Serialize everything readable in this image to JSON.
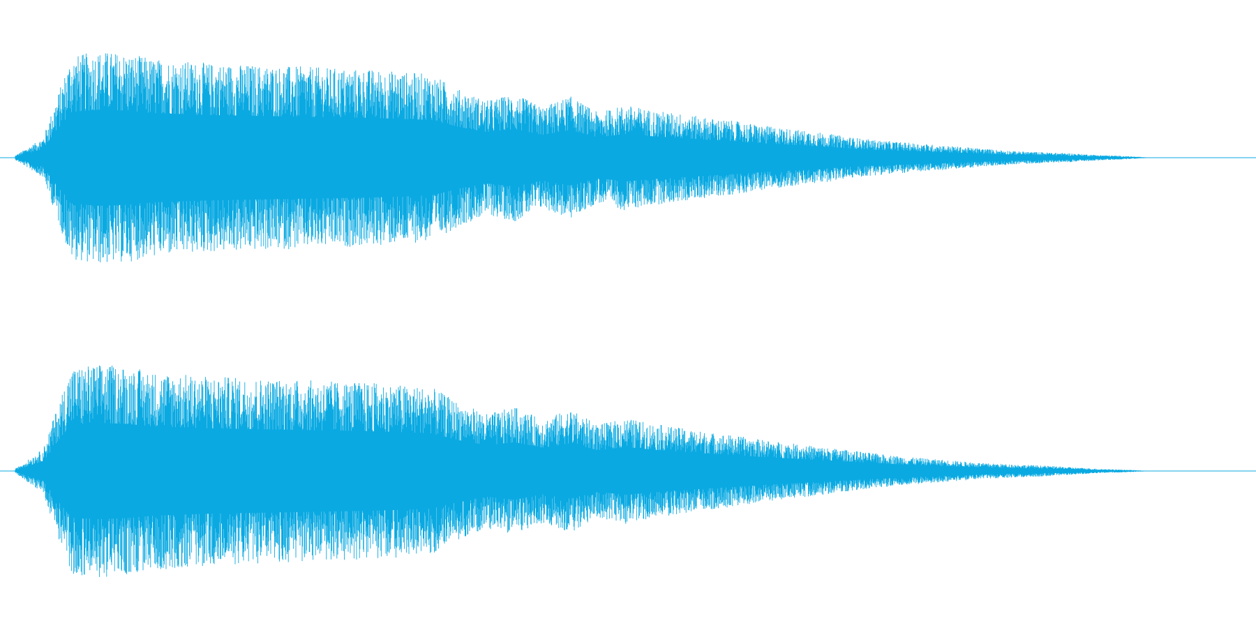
{
  "waveform": {
    "color": "#0aa9e2",
    "background": "#ffffff",
    "channels": [
      {
        "name": "channel-1",
        "envelope": [
          0.02,
          0.18,
          0.92,
          0.97,
          0.95,
          0.9,
          0.88,
          0.86,
          0.85,
          0.84,
          0.83,
          0.82,
          0.81,
          0.8,
          0.78,
          0.76,
          0.62,
          0.52,
          0.58,
          0.46,
          0.56,
          0.41,
          0.48,
          0.43,
          0.4,
          0.36,
          0.33,
          0.29,
          0.26,
          0.23,
          0.19,
          0.16,
          0.14,
          0.12,
          0.1,
          0.08,
          0.06,
          0.05,
          0.04,
          0.025,
          0.015,
          0.0
        ]
      },
      {
        "name": "channel-2",
        "envelope": [
          0.02,
          0.2,
          0.94,
          0.97,
          0.95,
          0.9,
          0.88,
          0.86,
          0.85,
          0.84,
          0.83,
          0.82,
          0.81,
          0.8,
          0.78,
          0.76,
          0.62,
          0.52,
          0.58,
          0.47,
          0.56,
          0.42,
          0.48,
          0.43,
          0.39,
          0.35,
          0.32,
          0.28,
          0.25,
          0.22,
          0.19,
          0.16,
          0.13,
          0.11,
          0.09,
          0.07,
          0.06,
          0.05,
          0.035,
          0.02,
          0.012,
          0.0
        ]
      }
    ]
  }
}
